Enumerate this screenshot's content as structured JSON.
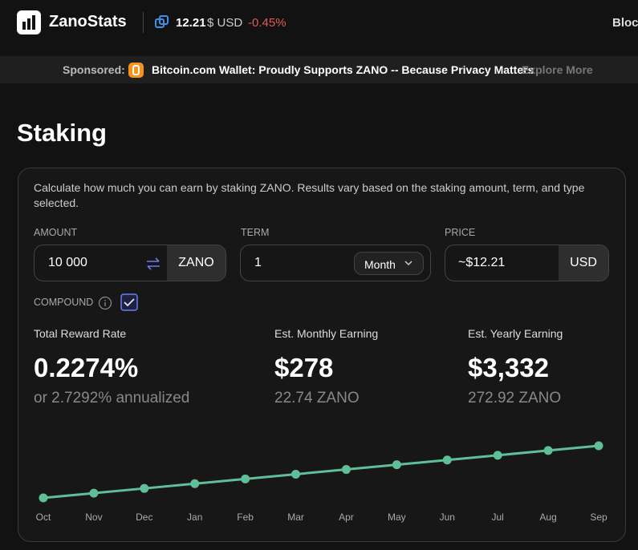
{
  "header": {
    "brand": "ZanoStats",
    "price": "12.21",
    "currency": "$ USD",
    "change": "-0.45%",
    "nav": "Block"
  },
  "sponsor": {
    "label": "Sponsored:",
    "text": "Bitcoin.com Wallet: Proudly Supports ZANO -- Because Privacy Matters",
    "link": "Explore More"
  },
  "page": {
    "title": "Staking",
    "description": "Calculate how much you can earn by staking ZANO. Results vary based on the staking amount, term, and type selected."
  },
  "form": {
    "amount": {
      "label": "AMOUNT",
      "value": "10 000",
      "unit": "ZANO"
    },
    "term": {
      "label": "TERM",
      "value": "1",
      "unit": "Month"
    },
    "price": {
      "label": "PRICE",
      "value": "~$12.21",
      "unit": "USD"
    },
    "compound": "COMPOUND"
  },
  "stats": [
    {
      "label": "Total Reward Rate",
      "value": "0.2274%",
      "sub": "or 2.7292% annualized"
    },
    {
      "label": "Est. Monthly Earning",
      "value": "$278",
      "sub": "22.74 ZANO"
    },
    {
      "label": "Est. Yearly Earning",
      "value": "$3,332",
      "sub": "272.92 ZANO"
    }
  ],
  "chart_data": {
    "type": "line",
    "color": "#5fbf99",
    "categories": [
      "Oct",
      "Nov",
      "Dec",
      "Jan",
      "Feb",
      "Mar",
      "Apr",
      "May",
      "Jun",
      "Jul",
      "Aug",
      "Sep"
    ],
    "values": [
      10022.74,
      10045.48,
      10068.22,
      10090.96,
      10113.7,
      10136.44,
      10159.18,
      10181.92,
      10204.66,
      10227.4,
      10250.14,
      10272.92
    ]
  }
}
